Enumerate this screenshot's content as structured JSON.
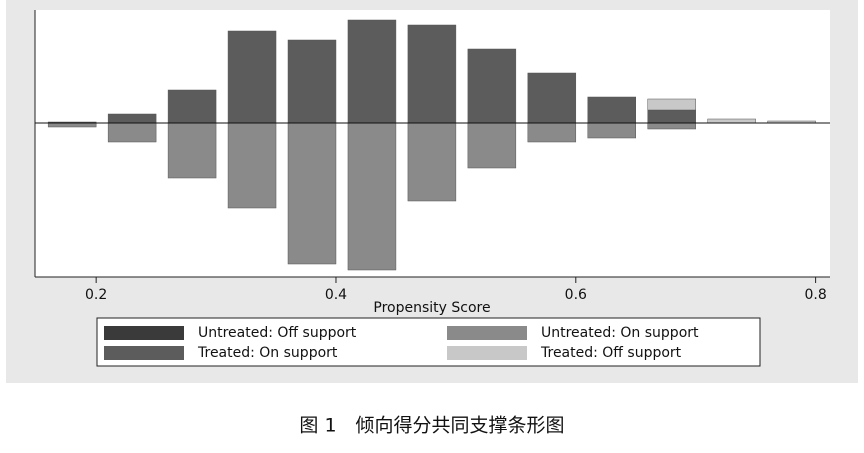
{
  "chart_data": {
    "type": "bar",
    "xlabel": "Propensity Score",
    "x": [
      0.18,
      0.23,
      0.28,
      0.33,
      0.38,
      0.43,
      0.48,
      0.53,
      0.58,
      0.63,
      0.68,
      0.73,
      0.78
    ],
    "series": [
      {
        "name": "Untreated: Off support",
        "color": "#3a3a3a",
        "values": [
          0,
          0,
          0,
          0,
          0,
          0,
          0,
          0,
          0,
          0,
          0,
          0,
          0
        ]
      },
      {
        "name": "Untreated: On support",
        "color": "#8a8a8a",
        "values": [
          -4,
          -19,
          -55,
          -85,
          -141,
          -147,
          -78,
          -45,
          -19,
          -15,
          -6,
          0,
          0
        ]
      },
      {
        "name": "Treated: On support",
        "color": "#5c5c5c",
        "values": [
          1,
          9,
          33,
          92,
          83,
          103,
          98,
          74,
          50,
          26,
          13,
          0,
          0
        ]
      },
      {
        "name": "Treated: Off support",
        "color": "#c8c8c8",
        "values": [
          0,
          0,
          0,
          0,
          0,
          0,
          0,
          0,
          0,
          0,
          11,
          4,
          2
        ]
      }
    ],
    "xlim": [
      0.149,
      0.812
    ],
    "xticks": [
      0.2,
      0.4,
      0.6,
      0.8
    ],
    "ylim": [
      -154,
      113
    ],
    "caption": "图 1　倾向得分共同支撑条形图"
  }
}
